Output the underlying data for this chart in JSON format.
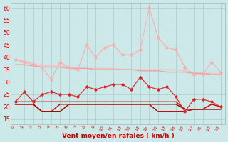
{
  "background_color": "#cce8e8",
  "grid_color": "#aacccc",
  "xlabel": "Vent moyen/en rafales ( km/h )",
  "xlabel_color": "#cc0000",
  "xlabel_fontsize": 6.5,
  "tick_label_color": "#cc0000",
  "xtick_fontsize": 4.5,
  "ytick_fontsize": 5.5,
  "ylim": [
    13,
    62
  ],
  "yticks": [
    15,
    20,
    25,
    30,
    35,
    40,
    45,
    50,
    55,
    60
  ],
  "xticks": [
    0,
    1,
    2,
    3,
    4,
    5,
    6,
    7,
    8,
    9,
    10,
    11,
    12,
    13,
    14,
    15,
    16,
    17,
    18,
    19,
    20,
    21,
    22,
    23
  ],
  "lines": [
    {
      "y": [
        39,
        38,
        37,
        36,
        31,
        38,
        36,
        35,
        45,
        40,
        44,
        45,
        41,
        41,
        43,
        60,
        48,
        44,
        43,
        36,
        33,
        33,
        38,
        34
      ],
      "color": "#ffaaaa",
      "linewidth": 0.8,
      "marker": "D",
      "markersize": 1.8,
      "zorder": 3
    },
    {
      "y": [
        39,
        38.5,
        37.5,
        36.5,
        36.5,
        36.5,
        36,
        35.5,
        35.5,
        35.5,
        35.5,
        35.5,
        35,
        35,
        35,
        35,
        35,
        35,
        35,
        34.5,
        33.5,
        33.5,
        33.5,
        33
      ],
      "color": "#ffbbbb",
      "linewidth": 1.0,
      "marker": null,
      "markersize": 0,
      "zorder": 2
    },
    {
      "y": [
        37,
        37,
        36.5,
        36,
        36,
        36,
        35.5,
        35.5,
        35.5,
        35,
        35,
        35,
        35,
        35,
        34.5,
        34.5,
        34.5,
        34,
        34,
        34,
        33.5,
        33.5,
        33,
        33
      ],
      "color": "#ddaaaa",
      "linewidth": 1.0,
      "marker": null,
      "markersize": 0,
      "zorder": 2
    },
    {
      "y": [
        22,
        26,
        22,
        25,
        26,
        25,
        25,
        24,
        28,
        27,
        28,
        29,
        29,
        27,
        32,
        28,
        27,
        28,
        24,
        18,
        23,
        23,
        22,
        20
      ],
      "color": "#dd2222",
      "linewidth": 0.8,
      "marker": "D",
      "markersize": 1.8,
      "zorder": 4
    },
    {
      "y": [
        22,
        22,
        22,
        22,
        22,
        22,
        22,
        22,
        22,
        22,
        22,
        22,
        22,
        22,
        22,
        22,
        22,
        22,
        22,
        19,
        19,
        19,
        19,
        19
      ],
      "color": "#cc0000",
      "linewidth": 1.0,
      "marker": null,
      "markersize": 0,
      "zorder": 3
    },
    {
      "y": [
        21,
        21,
        21,
        18,
        18,
        21,
        21,
        21,
        21,
        21,
        21,
        21,
        21,
        21,
        21,
        21,
        18,
        18,
        18,
        18,
        19,
        19,
        21,
        20
      ],
      "color": "#bb0000",
      "linewidth": 1.0,
      "marker": null,
      "markersize": 0,
      "zorder": 3
    },
    {
      "y": [
        21,
        21,
        21,
        18,
        18,
        18,
        21,
        21,
        21,
        21,
        21,
        21,
        21,
        21,
        21,
        21,
        21,
        21,
        21,
        19,
        19,
        19,
        19,
        19
      ],
      "color": "#990000",
      "linewidth": 1.0,
      "marker": null,
      "markersize": 0,
      "zorder": 2
    }
  ]
}
